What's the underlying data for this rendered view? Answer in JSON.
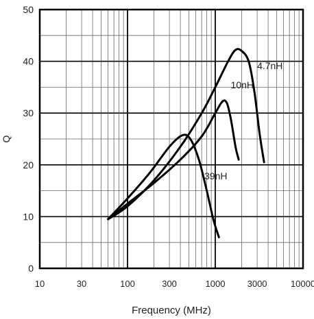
{
  "chart_data": {
    "type": "line",
    "xscale": "log",
    "xlim": [
      10,
      10000
    ],
    "ylim": [
      0,
      50
    ],
    "xlabel": "Frequency (MHz)",
    "ylabel": "Q",
    "grid": true,
    "x_ticks": [
      {
        "value": 10,
        "label": "10"
      },
      {
        "value": 30,
        "label": "30"
      },
      {
        "value": 100,
        "label": "100"
      },
      {
        "value": 300,
        "label": "300"
      },
      {
        "value": 1000,
        "label": "1000"
      },
      {
        "value": 3000,
        "label": "3000"
      },
      {
        "value": 10000,
        "label": "10000"
      }
    ],
    "y_ticks": [
      {
        "value": 0,
        "label": "0"
      },
      {
        "value": 10,
        "label": "10"
      },
      {
        "value": 20,
        "label": "20"
      },
      {
        "value": 30,
        "label": "30"
      },
      {
        "value": 40,
        "label": "40"
      },
      {
        "value": 50,
        "label": "50"
      }
    ],
    "series": [
      {
        "name": "4.7nH",
        "label_at": [
          3000,
          38.5
        ],
        "points": [
          [
            60,
            9.5
          ],
          [
            100,
            12
          ],
          [
            200,
            17
          ],
          [
            400,
            23.5
          ],
          [
            700,
            30
          ],
          [
            1000,
            35
          ],
          [
            1400,
            40
          ],
          [
            1700,
            42.2
          ],
          [
            2000,
            42
          ],
          [
            2400,
            40
          ],
          [
            2800,
            34
          ],
          [
            3200,
            26
          ],
          [
            3600,
            20.5
          ]
        ]
      },
      {
        "name": "10nH",
        "label_at": [
          1500,
          34.8
        ],
        "points": [
          [
            60,
            9.5
          ],
          [
            100,
            12.5
          ],
          [
            200,
            16.5
          ],
          [
            400,
            21
          ],
          [
            700,
            25.5
          ],
          [
            1000,
            30
          ],
          [
            1200,
            32.2
          ],
          [
            1350,
            32
          ],
          [
            1500,
            29
          ],
          [
            1700,
            23.5
          ],
          [
            1850,
            21
          ]
        ]
      },
      {
        "name": "39nH",
        "label_at": [
          750,
          17.2
        ],
        "points": [
          [
            60,
            9.5
          ],
          [
            100,
            13.5
          ],
          [
            180,
            18.5
          ],
          [
            300,
            23.5
          ],
          [
            420,
            25.7
          ],
          [
            520,
            25
          ],
          [
            650,
            21
          ],
          [
            800,
            15
          ],
          [
            950,
            9.5
          ],
          [
            1100,
            6
          ]
        ]
      }
    ]
  }
}
